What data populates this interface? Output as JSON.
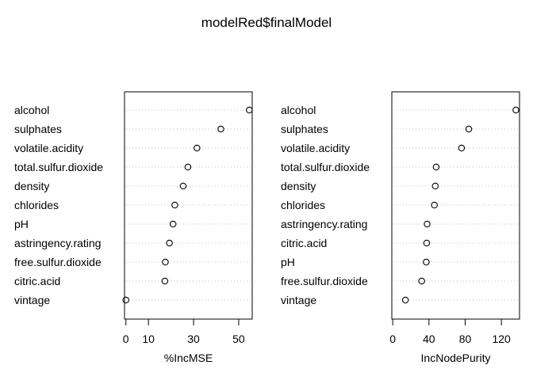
{
  "chart_data": {
    "title": "modelRed$finalModel",
    "panels": [
      {
        "type": "scatter",
        "xlabel": "%IncMSE",
        "xticks": [
          0,
          10,
          30,
          50
        ],
        "xlim": [
          -0.6,
          56
        ],
        "labels": [
          "alcohol",
          "sulphates",
          "volatile.acidity",
          "total.sulfur.dioxide",
          "density",
          "chlorides",
          "pH",
          "astringency.rating",
          "free.sulfur.dioxide",
          "citric.acid",
          "vintage"
        ],
        "values": [
          54.7,
          42.1,
          31.5,
          27.5,
          25.4,
          21.7,
          20.9,
          19.3,
          17.5,
          17.3,
          0.0
        ],
        "grid": "dotted"
      },
      {
        "type": "scatter",
        "xlabel": "IncNodePurity",
        "xticks": [
          0,
          40,
          80,
          120
        ],
        "xlim": [
          -1,
          140
        ],
        "labels": [
          "alcohol",
          "sulphates",
          "volatile.acidity",
          "total.sulfur.dioxide",
          "density",
          "chlorides",
          "astringency.rating",
          "citric.acid",
          "pH",
          "free.sulfur.dioxide",
          "vintage"
        ],
        "values": [
          136,
          84,
          76,
          48,
          47,
          46,
          38,
          37.5,
          37,
          32,
          14
        ],
        "grid": "dotted"
      }
    ]
  }
}
